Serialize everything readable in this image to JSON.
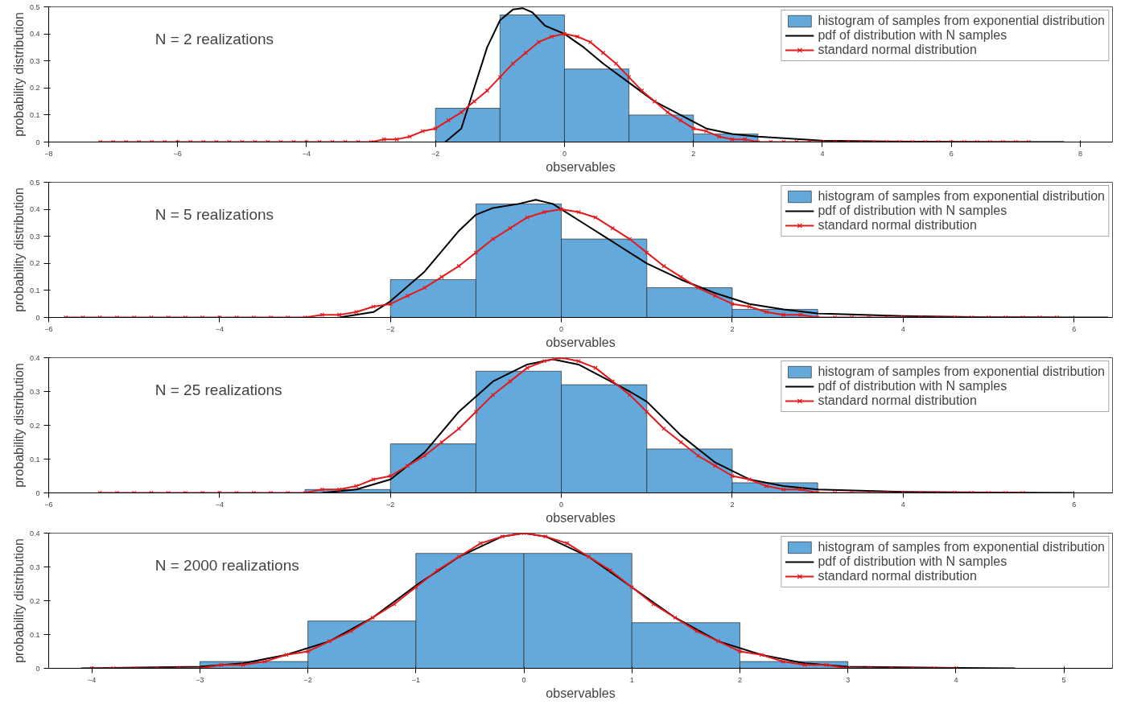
{
  "chart_data": [
    {
      "type": "histogram",
      "xlabel": "observables",
      "ylabel": "probability distribution",
      "annotations": [
        "N = 2 realizations"
      ],
      "xlim": [
        -8,
        8.5
      ],
      "ylim": [
        0,
        0.5
      ],
      "xticks": [
        -8,
        -6,
        -4,
        -2,
        0,
        2,
        4,
        6,
        8
      ],
      "yticks": [
        0,
        0.1,
        0.2,
        0.3,
        0.4,
        0.5
      ],
      "grid": false,
      "legend": "top right",
      "series": [
        {
          "name": "histogram of samples from exponential distribution",
          "color": "#64a9db",
          "bins": [
            -2,
            -1,
            0,
            1,
            2,
            3
          ],
          "values": [
            0.125,
            0.47,
            0.27,
            0.1,
            0.03
          ]
        },
        {
          "name": "pdf of distribution with N samples",
          "type": "line",
          "color": "#000000",
          "marker": "none",
          "x": [
            -1.85,
            -1.6,
            -1.4,
            -1.2,
            -1.0,
            -0.8,
            -0.65,
            -0.5,
            -0.3,
            0,
            0.3,
            0.6,
            1.0,
            1.4,
            1.8,
            2.2,
            2.6,
            3.0,
            4,
            5,
            6,
            7,
            7.75
          ],
          "values": [
            0,
            0.05,
            0.2,
            0.35,
            0.45,
            0.49,
            0.495,
            0.48,
            0.43,
            0.4,
            0.35,
            0.29,
            0.22,
            0.15,
            0.1,
            0.05,
            0.03,
            0.02,
            0.005,
            0.002,
            0.001,
            0,
            0
          ]
        },
        {
          "name": "standard normal distribution",
          "type": "line",
          "color": "#e31a1c",
          "marker": "cross",
          "x": [
            -7.2,
            -7,
            -6.8,
            -6.6,
            -6.4,
            -6.2,
            -6,
            -5.8,
            -5.6,
            -5.4,
            -5.2,
            -5,
            -4.8,
            -4.6,
            -4.4,
            -4.2,
            -4,
            -3.8,
            -3.6,
            -3.4,
            -3.2,
            -3,
            -2.8,
            -2.6,
            -2.4,
            -2.2,
            -2,
            -1.8,
            -1.6,
            -1.4,
            -1.2,
            -1,
            -0.8,
            -0.6,
            -0.4,
            -0.2,
            0,
            0.2,
            0.4,
            0.6,
            0.8,
            1,
            1.2,
            1.4,
            1.6,
            1.8,
            2,
            2.2,
            2.4,
            2.6,
            2.8,
            3,
            3.2,
            3.4,
            3.6,
            3.8,
            4,
            4.2,
            4.4,
            4.6,
            4.8,
            5,
            5.2,
            5.4,
            5.6,
            5.8,
            6,
            6.2,
            6.4,
            6.6,
            6.8,
            7,
            7.2
          ],
          "values": [
            0,
            0,
            0,
            0,
            0,
            0,
            0,
            0,
            0,
            0,
            0,
            0,
            0,
            0,
            0,
            0,
            0,
            0,
            0,
            0,
            0,
            0,
            0.01,
            0.01,
            0.02,
            0.04,
            0.05,
            0.08,
            0.11,
            0.15,
            0.19,
            0.24,
            0.29,
            0.33,
            0.37,
            0.39,
            0.4,
            0.39,
            0.37,
            0.33,
            0.29,
            0.24,
            0.19,
            0.15,
            0.11,
            0.08,
            0.05,
            0.04,
            0.02,
            0.01,
            0.01,
            0,
            0,
            0,
            0,
            0,
            0,
            0,
            0,
            0,
            0,
            0,
            0,
            0,
            0,
            0,
            0,
            0,
            0,
            0,
            0,
            0,
            0
          ]
        }
      ]
    },
    {
      "type": "histogram",
      "xlabel": "observables",
      "ylabel": "probability distribution",
      "annotations": [
        "N = 5 realizations"
      ],
      "xlim": [
        -6,
        6.45
      ],
      "ylim": [
        0,
        0.5
      ],
      "xticks": [
        -6,
        -4,
        -2,
        0,
        2,
        4,
        6
      ],
      "yticks": [
        0,
        0.1,
        0.2,
        0.3,
        0.4,
        0.5
      ],
      "grid": false,
      "legend": "top right",
      "series": [
        {
          "name": "histogram of samples from exponential distribution",
          "color": "#64a9db",
          "bins": [
            -2,
            -1,
            0,
            1,
            2,
            3
          ],
          "values": [
            0.14,
            0.42,
            0.29,
            0.11,
            0.03
          ]
        },
        {
          "name": "pdf of distribution with N samples",
          "type": "line",
          "color": "#000000",
          "marker": "none",
          "x": [
            -2.6,
            -2.2,
            -2.0,
            -1.6,
            -1.2,
            -1.0,
            -0.8,
            -0.5,
            -0.3,
            -0.1,
            0,
            0.3,
            0.6,
            1.0,
            1.4,
            1.8,
            2.2,
            2.6,
            3.0,
            4,
            5,
            6,
            6.4
          ],
          "values": [
            0,
            0.02,
            0.06,
            0.17,
            0.32,
            0.38,
            0.405,
            0.42,
            0.435,
            0.42,
            0.4,
            0.34,
            0.28,
            0.2,
            0.14,
            0.09,
            0.05,
            0.03,
            0.015,
            0.005,
            0.001,
            0,
            0
          ]
        },
        {
          "name": "standard normal distribution",
          "type": "line",
          "color": "#e31a1c",
          "marker": "cross",
          "x": [
            -5.8,
            -5.6,
            -5.4,
            -5.2,
            -5,
            -4.8,
            -4.6,
            -4.4,
            -4.2,
            -4,
            -3.8,
            -3.6,
            -3.4,
            -3.2,
            -3,
            -2.8,
            -2.6,
            -2.4,
            -2.2,
            -2,
            -1.8,
            -1.6,
            -1.4,
            -1.2,
            -1,
            -0.8,
            -0.6,
            -0.4,
            -0.2,
            0,
            0.2,
            0.4,
            0.6,
            0.8,
            1,
            1.2,
            1.4,
            1.6,
            1.8,
            2,
            2.2,
            2.4,
            2.6,
            2.8,
            3,
            3.2,
            3.4,
            3.6,
            3.8,
            4,
            4.2,
            4.4,
            4.6,
            4.8,
            5,
            5.2,
            5.4,
            5.6,
            5.8
          ],
          "values": [
            0,
            0,
            0,
            0,
            0,
            0,
            0,
            0,
            0,
            0,
            0,
            0,
            0,
            0,
            0,
            0.01,
            0.01,
            0.02,
            0.04,
            0.05,
            0.08,
            0.11,
            0.15,
            0.19,
            0.24,
            0.29,
            0.33,
            0.37,
            0.39,
            0.4,
            0.39,
            0.37,
            0.33,
            0.29,
            0.24,
            0.19,
            0.15,
            0.11,
            0.08,
            0.05,
            0.04,
            0.02,
            0.01,
            0.01,
            0,
            0,
            0,
            0,
            0,
            0,
            0,
            0,
            0,
            0,
            0,
            0,
            0,
            0,
            0
          ]
        }
      ]
    },
    {
      "type": "histogram",
      "xlabel": "observables",
      "ylabel": "probability distribution",
      "annotations": [
        "N = 25 realizations"
      ],
      "xlim": [
        -6,
        6.45
      ],
      "ylim": [
        0,
        0.4
      ],
      "xticks": [
        -6,
        -4,
        -2,
        0,
        2,
        4,
        6
      ],
      "yticks": [
        0,
        0.1,
        0.2,
        0.3,
        0.4
      ],
      "grid": false,
      "legend": "top right",
      "series": [
        {
          "name": "histogram of samples from exponential distribution",
          "color": "#64a9db",
          "bins": [
            -3,
            -2,
            -1,
            0,
            1,
            2,
            3
          ],
          "values": [
            0.01,
            0.145,
            0.36,
            0.32,
            0.13,
            0.03
          ]
        },
        {
          "name": "pdf of distribution with N samples",
          "type": "line",
          "color": "#000000",
          "marker": "none",
          "x": [
            -2.8,
            -2.4,
            -2.0,
            -1.6,
            -1.2,
            -0.8,
            -0.4,
            -0.1,
            0.2,
            0.5,
            0.8,
            1.0,
            1.4,
            1.8,
            2.2,
            2.6,
            3.0,
            4,
            5,
            6
          ],
          "values": [
            0,
            0.01,
            0.04,
            0.12,
            0.24,
            0.33,
            0.38,
            0.395,
            0.38,
            0.34,
            0.3,
            0.27,
            0.17,
            0.09,
            0.04,
            0.02,
            0.01,
            0.003,
            0.001,
            0
          ]
        },
        {
          "name": "standard normal distribution",
          "type": "line",
          "color": "#e31a1c",
          "marker": "cross",
          "x": [
            -5.4,
            -5.2,
            -5,
            -4.8,
            -4.6,
            -4.4,
            -4.2,
            -4,
            -3.8,
            -3.6,
            -3.4,
            -3.2,
            -3,
            -2.8,
            -2.6,
            -2.4,
            -2.2,
            -2,
            -1.8,
            -1.6,
            -1.4,
            -1.2,
            -1,
            -0.8,
            -0.6,
            -0.4,
            -0.2,
            0,
            0.2,
            0.4,
            0.6,
            0.8,
            1,
            1.2,
            1.4,
            1.6,
            1.8,
            2,
            2.2,
            2.4,
            2.6,
            2.8,
            3,
            3.2,
            3.4,
            3.6,
            3.8,
            4,
            4.2,
            4.4,
            4.6,
            4.8,
            5,
            5.2,
            5.4
          ],
          "values": [
            0,
            0,
            0,
            0,
            0,
            0,
            0,
            0,
            0,
            0,
            0,
            0,
            0,
            0.01,
            0.01,
            0.02,
            0.04,
            0.05,
            0.08,
            0.11,
            0.15,
            0.19,
            0.24,
            0.29,
            0.33,
            0.37,
            0.39,
            0.4,
            0.39,
            0.37,
            0.33,
            0.29,
            0.24,
            0.19,
            0.15,
            0.11,
            0.08,
            0.05,
            0.04,
            0.02,
            0.01,
            0.01,
            0,
            0,
            0,
            0,
            0,
            0,
            0,
            0,
            0,
            0,
            0,
            0,
            0
          ]
        }
      ]
    },
    {
      "type": "histogram",
      "xlabel": "observables",
      "ylabel": "probability distribution",
      "annotations": [
        "N = 2000 realizations"
      ],
      "xlim": [
        -4.4,
        5.45
      ],
      "ylim": [
        0,
        0.4
      ],
      "xticks": [
        -4,
        -3,
        -2,
        -1,
        0,
        1,
        2,
        3,
        4,
        5
      ],
      "yticks": [
        0,
        0.1,
        0.2,
        0.3,
        0.4
      ],
      "grid": false,
      "legend": "top right",
      "series": [
        {
          "name": "histogram of samples from exponential distribution",
          "color": "#64a9db",
          "bins": [
            -3,
            -2,
            -1,
            0,
            1,
            2,
            3
          ],
          "values": [
            0.02,
            0.14,
            0.34,
            0.34,
            0.135,
            0.02
          ]
        },
        {
          "name": "pdf of distribution with N samples",
          "type": "line",
          "color": "#000000",
          "marker": "none",
          "x": [
            -4.1,
            -3,
            -2.6,
            -2.2,
            -1.8,
            -1.4,
            -1.0,
            -0.6,
            -0.2,
            0,
            0.2,
            0.6,
            1.0,
            1.4,
            1.8,
            2.2,
            2.6,
            3.0,
            4,
            4.55
          ],
          "values": [
            0,
            0.005,
            0.015,
            0.04,
            0.08,
            0.15,
            0.245,
            0.33,
            0.39,
            0.4,
            0.39,
            0.33,
            0.24,
            0.15,
            0.08,
            0.04,
            0.015,
            0.005,
            0.001,
            0
          ]
        },
        {
          "name": "standard normal distribution",
          "type": "line",
          "color": "#e31a1c",
          "marker": "cross",
          "x": [
            -4,
            -3.8,
            -3.6,
            -3.4,
            -3.2,
            -3,
            -2.8,
            -2.6,
            -2.4,
            -2.2,
            -2,
            -1.8,
            -1.6,
            -1.4,
            -1.2,
            -1,
            -0.8,
            -0.6,
            -0.4,
            -0.2,
            0,
            0.2,
            0.4,
            0.6,
            0.8,
            1,
            1.2,
            1.4,
            1.6,
            1.8,
            2,
            2.2,
            2.4,
            2.6,
            2.8,
            3,
            3.2,
            3.4,
            3.6,
            3.8,
            4
          ],
          "values": [
            0,
            0,
            0,
            0,
            0,
            0,
            0.01,
            0.01,
            0.02,
            0.04,
            0.05,
            0.08,
            0.11,
            0.15,
            0.19,
            0.24,
            0.29,
            0.33,
            0.37,
            0.39,
            0.4,
            0.39,
            0.37,
            0.33,
            0.29,
            0.24,
            0.19,
            0.15,
            0.11,
            0.08,
            0.05,
            0.04,
            0.02,
            0.01,
            0.01,
            0,
            0,
            0,
            0,
            0,
            0
          ]
        }
      ]
    }
  ]
}
